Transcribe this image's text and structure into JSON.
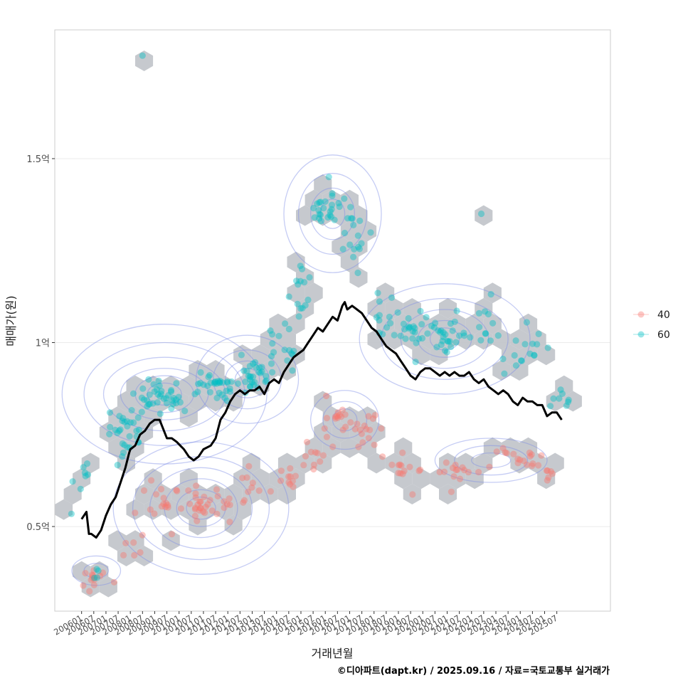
{
  "chart_data": {
    "type": "scatter",
    "ylabel": "매매가(원)",
    "xlabel": "거래년월",
    "caption": "©디아파트(dapt.kr) / 2025.09.16 / 자료=국토교통부 실거래가",
    "ylim": [
      0.27,
      1.85
    ],
    "xlim": [
      2004.9,
      2027.7
    ],
    "y_ticks": [
      {
        "value": 0.5,
        "label": "0.5억"
      },
      {
        "value": 1.0,
        "label": "1억"
      },
      {
        "value": 1.5,
        "label": "1.5억"
      }
    ],
    "x_ticks": [
      "200601",
      "200607",
      "200701",
      "200707",
      "200801",
      "200807",
      "200901",
      "200907",
      "201001",
      "201007",
      "201101",
      "201107",
      "201201",
      "201207",
      "201301",
      "201307",
      "201401",
      "201407",
      "201501",
      "201507",
      "201601",
      "201607",
      "201701",
      "201707",
      "201801",
      "201807",
      "201901",
      "201907",
      "202001",
      "202007",
      "202101",
      "202107",
      "202201",
      "202207",
      "202301",
      "202307",
      "202401",
      "202407",
      "202501",
      "202507"
    ],
    "legend": {
      "position": "right",
      "items": [
        {
          "label": "40",
          "color": "#F8766D"
        },
        {
          "label": "60",
          "color": "#00BFC4"
        }
      ]
    },
    "colors": {
      "s40": "#F8766D",
      "s60": "#00BFC4",
      "hex": "#bec2c7",
      "contour": "#7f8fe6",
      "trend": "#000000",
      "grid": "#ebebeb",
      "panel_border": "#cccccc"
    },
    "series": [
      {
        "name": "40",
        "clusters": [
          {
            "x": 2006.4,
            "y": 0.36,
            "sx": 0.6,
            "sy": 0.03,
            "n": 14
          },
          {
            "x": 2008.2,
            "y": 0.45,
            "sx": 0.4,
            "sy": 0.05,
            "n": 6
          },
          {
            "x": 2009.5,
            "y": 0.57,
            "sx": 0.9,
            "sy": 0.06,
            "n": 18
          },
          {
            "x": 2010.8,
            "y": 0.56,
            "sx": 0.8,
            "sy": 0.04,
            "n": 22
          },
          {
            "x": 2011.8,
            "y": 0.55,
            "sx": 0.6,
            "sy": 0.05,
            "n": 10
          },
          {
            "x": 2013.0,
            "y": 0.61,
            "sx": 0.7,
            "sy": 0.04,
            "n": 9
          },
          {
            "x": 2014.4,
            "y": 0.65,
            "sx": 0.6,
            "sy": 0.04,
            "n": 10
          },
          {
            "x": 2015.6,
            "y": 0.7,
            "sx": 0.5,
            "sy": 0.04,
            "n": 10
          },
          {
            "x": 2016.7,
            "y": 0.8,
            "sx": 0.6,
            "sy": 0.05,
            "n": 20
          },
          {
            "x": 2017.8,
            "y": 0.75,
            "sx": 0.6,
            "sy": 0.05,
            "n": 12
          },
          {
            "x": 2019.3,
            "y": 0.65,
            "sx": 0.8,
            "sy": 0.05,
            "n": 14
          },
          {
            "x": 2021.5,
            "y": 0.65,
            "sx": 1.0,
            "sy": 0.03,
            "n": 14
          },
          {
            "x": 2023.8,
            "y": 0.69,
            "sx": 1.0,
            "sy": 0.03,
            "n": 18
          },
          {
            "x": 2025.2,
            "y": 0.62,
            "sx": 0.4,
            "sy": 0.04,
            "n": 6
          }
        ]
      },
      {
        "name": "60",
        "clusters": [
          {
            "x": 2006.0,
            "y": 0.62,
            "sx": 0.4,
            "sy": 0.05,
            "n": 8
          },
          {
            "x": 2006.6,
            "y": 0.37,
            "sx": 0.4,
            "sy": 0.02,
            "n": 4
          },
          {
            "x": 2007.8,
            "y": 0.76,
            "sx": 0.7,
            "sy": 0.05,
            "n": 30
          },
          {
            "x": 2009.3,
            "y": 0.85,
            "sx": 0.9,
            "sy": 0.04,
            "n": 40
          },
          {
            "x": 2011.4,
            "y": 0.88,
            "sx": 0.8,
            "sy": 0.03,
            "n": 30
          },
          {
            "x": 2013.0,
            "y": 0.91,
            "sx": 0.7,
            "sy": 0.04,
            "n": 30
          },
          {
            "x": 2014.2,
            "y": 0.98,
            "sx": 0.5,
            "sy": 0.05,
            "n": 16
          },
          {
            "x": 2015.0,
            "y": 1.12,
            "sx": 0.5,
            "sy": 0.08,
            "n": 14
          },
          {
            "x": 2016.0,
            "y": 1.36,
            "sx": 0.5,
            "sy": 0.06,
            "n": 24
          },
          {
            "x": 2017.1,
            "y": 1.31,
            "sx": 0.6,
            "sy": 0.06,
            "n": 18
          },
          {
            "x": 2018.3,
            "y": 1.1,
            "sx": 0.5,
            "sy": 0.08,
            "n": 10
          },
          {
            "x": 2019.5,
            "y": 1.04,
            "sx": 0.8,
            "sy": 0.05,
            "n": 24
          },
          {
            "x": 2021.0,
            "y": 1.02,
            "sx": 0.8,
            "sy": 0.05,
            "n": 26
          },
          {
            "x": 2022.7,
            "y": 1.05,
            "sx": 0.8,
            "sy": 0.07,
            "n": 14
          },
          {
            "x": 2024.3,
            "y": 0.98,
            "sx": 0.6,
            "sy": 0.05,
            "n": 14
          },
          {
            "x": 2025.7,
            "y": 0.84,
            "sx": 0.5,
            "sy": 0.04,
            "n": 8
          }
        ],
        "points": [
          {
            "x": 2008.5,
            "y": 1.78
          },
          {
            "x": 2022.4,
            "y": 1.35
          }
        ]
      }
    ],
    "trend_line": {
      "name": "moving average",
      "x": [
        2006.0,
        2006.2,
        2006.3,
        2006.4,
        2006.6,
        2006.8,
        2007.0,
        2007.2,
        2007.4,
        2007.6,
        2007.8,
        2007.95,
        2008.0,
        2008.2,
        2008.4,
        2008.6,
        2008.8,
        2009.0,
        2009.2,
        2009.5,
        2009.7,
        2009.9,
        2010.2,
        2010.4,
        2010.6,
        2010.8,
        2011.0,
        2011.3,
        2011.5,
        2011.7,
        2011.9,
        2012.1,
        2012.3,
        2012.5,
        2012.7,
        2012.9,
        2013.1,
        2013.3,
        2013.5,
        2013.7,
        2013.9,
        2014.1,
        2014.3,
        2014.5,
        2014.7,
        2014.9,
        2015.1,
        2015.3,
        2015.5,
        2015.7,
        2015.9,
        2016.1,
        2016.3,
        2016.5,
        2016.7,
        2016.8,
        2016.9,
        2017.1,
        2017.3,
        2017.5,
        2017.7,
        2017.9,
        2018.1,
        2018.3,
        2018.5,
        2018.7,
        2018.9,
        2019.1,
        2019.3,
        2019.5,
        2019.7,
        2019.9,
        2020.1,
        2020.3,
        2020.5,
        2020.7,
        2020.9,
        2021.1,
        2021.3,
        2021.5,
        2021.7,
        2021.9,
        2022.1,
        2022.3,
        2022.5,
        2022.7,
        2022.9,
        2023.1,
        2023.3,
        2023.5,
        2023.7,
        2023.9,
        2024.1,
        2024.3,
        2024.5,
        2024.7,
        2024.9,
        2025.1,
        2025.3,
        2025.5,
        2025.7
      ],
      "y": [
        0.52,
        0.54,
        0.48,
        0.48,
        0.47,
        0.49,
        0.53,
        0.56,
        0.58,
        0.62,
        0.66,
        0.7,
        0.71,
        0.72,
        0.75,
        0.76,
        0.78,
        0.79,
        0.79,
        0.74,
        0.74,
        0.73,
        0.71,
        0.69,
        0.68,
        0.69,
        0.71,
        0.72,
        0.74,
        0.79,
        0.81,
        0.84,
        0.86,
        0.87,
        0.86,
        0.87,
        0.87,
        0.88,
        0.86,
        0.89,
        0.9,
        0.89,
        0.92,
        0.94,
        0.96,
        0.97,
        0.98,
        1.0,
        1.02,
        1.04,
        1.03,
        1.05,
        1.07,
        1.06,
        1.1,
        1.11,
        1.09,
        1.1,
        1.09,
        1.08,
        1.06,
        1.04,
        1.03,
        1.01,
        0.99,
        0.98,
        0.97,
        0.95,
        0.93,
        0.91,
        0.9,
        0.92,
        0.93,
        0.93,
        0.92,
        0.91,
        0.92,
        0.91,
        0.92,
        0.91,
        0.91,
        0.92,
        0.9,
        0.89,
        0.9,
        0.88,
        0.87,
        0.86,
        0.87,
        0.86,
        0.84,
        0.83,
        0.85,
        0.84,
        0.84,
        0.83,
        0.83,
        0.8,
        0.81,
        0.81,
        0.79
      ]
    },
    "density_contours": [
      {
        "cx": 2010.9,
        "cy": 0.55,
        "rx": [
          0.6,
          1.0,
          1.5,
          2.1,
          2.8,
          3.6
        ],
        "ry": [
          0.03,
          0.05,
          0.08,
          0.11,
          0.14,
          0.18
        ]
      },
      {
        "cx": 2009.4,
        "cy": 0.86,
        "rx": [
          0.7,
          1.2,
          1.8,
          2.5,
          3.3,
          4.2
        ],
        "ry": [
          0.03,
          0.05,
          0.07,
          0.1,
          0.14,
          0.19
        ]
      },
      {
        "cx": 2012.8,
        "cy": 0.9,
        "rx": [
          0.5,
          0.9,
          1.4,
          2.1
        ],
        "ry": [
          0.03,
          0.05,
          0.08,
          0.12
        ]
      },
      {
        "cx": 2016.3,
        "cy": 1.35,
        "rx": [
          0.5,
          0.9,
          1.4,
          2.0
        ],
        "ry": [
          0.04,
          0.07,
          0.11,
          0.16
        ]
      },
      {
        "cx": 2020.9,
        "cy": 1.01,
        "rx": [
          0.6,
          1.1,
          1.8,
          2.6,
          3.5
        ],
        "ry": [
          0.03,
          0.05,
          0.08,
          0.11,
          0.15
        ]
      },
      {
        "cx": 2016.8,
        "cy": 0.79,
        "rx": [
          0.5,
          0.9,
          1.4
        ],
        "ry": [
          0.03,
          0.05,
          0.08
        ]
      },
      {
        "cx": 2022.8,
        "cy": 0.68,
        "rx": [
          0.8,
          1.5,
          2.3
        ],
        "ry": [
          0.02,
          0.04,
          0.06
        ]
      },
      {
        "cx": 2006.6,
        "cy": 0.38,
        "rx": [
          0.5,
          1.0
        ],
        "ry": [
          0.02,
          0.04
        ]
      }
    ]
  }
}
